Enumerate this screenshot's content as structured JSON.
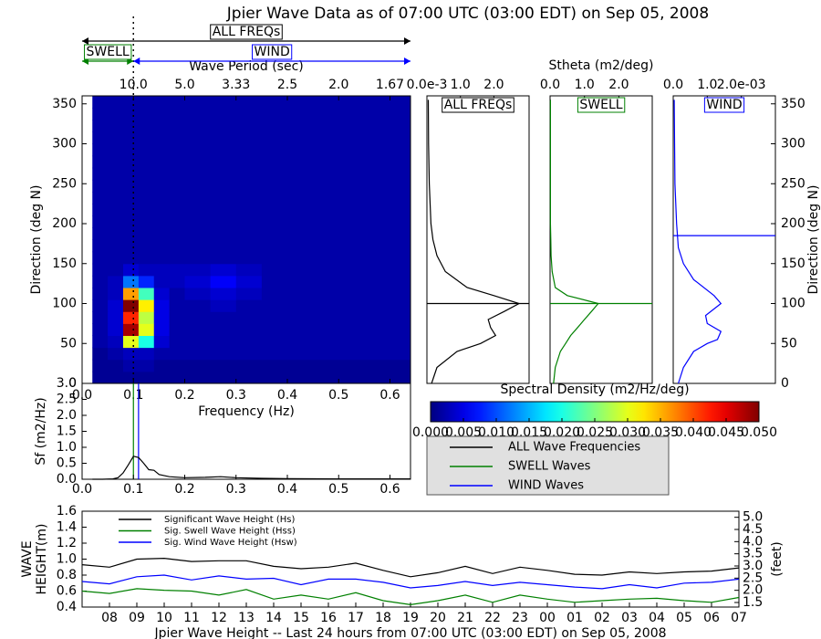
{
  "title": "Jpier Wave Data as of 07:00 UTC (03:00 EDT) on Sep 05, 2008",
  "legend": {
    "entries": [
      {
        "name": "ALL Wave Frequencies",
        "color": "#000000"
      },
      {
        "name": "SWELL Waves",
        "color": "#008000"
      },
      {
        "name": "WIND Waves",
        "color": "#0000ff"
      }
    ]
  },
  "chart_data": [
    {
      "type": "heatmap",
      "xlabel": "Frequency (Hz)",
      "ylabel": "Direction (deg N)",
      "x2label": "Wave Period (sec)",
      "xlim": [
        0,
        0.64
      ],
      "ylim": [
        0,
        360
      ],
      "xticks": [
        {
          "value": 0,
          "label": "0.0"
        },
        0.1,
        0.2,
        0.3,
        0.4,
        0.5,
        0.6
      ],
      "yticks": [
        0,
        50,
        100,
        150,
        200,
        250,
        300,
        350
      ],
      "x2ticks": [
        {
          "value": 0.1,
          "label": "10.0"
        },
        {
          "value": 0.2,
          "label": "5.0"
        },
        {
          "value": 0.3,
          "label": "3.33"
        },
        {
          "value": 0.4,
          "label": "2.5"
        },
        {
          "value": 0.5,
          "label": "2.0"
        },
        {
          "value": 0.6,
          "label": "1.67"
        }
      ],
      "x_edges": [
        0.02,
        0.05,
        0.08,
        0.11,
        0.14,
        0.17,
        0.2,
        0.25,
        0.3,
        0.35,
        0.4,
        0.5,
        0.64
      ],
      "y_edges": [
        0,
        15,
        30,
        45,
        60,
        75,
        90,
        105,
        120,
        135,
        150,
        165,
        180,
        195,
        210,
        225,
        240,
        255,
        270,
        285,
        300,
        315,
        330,
        345,
        360
      ],
      "values": [
        [
          0.001,
          0.001,
          0.001,
          0.001,
          0.001,
          0.001,
          0.001,
          0.001,
          0.001,
          0.001,
          0.001,
          0.001
        ],
        [
          0.001,
          0.001,
          0.002,
          0.002,
          0.001,
          0.001,
          0.001,
          0.001,
          0.001,
          0.001,
          0.001,
          0.001
        ],
        [
          0.001,
          0.002,
          0.003,
          0.003,
          0.002,
          0.002,
          0.002,
          0.002,
          0.002,
          0.002,
          0.002,
          0.002
        ],
        [
          0.002,
          0.003,
          0.03,
          0.02,
          0.004,
          0.002,
          0.002,
          0.002,
          0.002,
          0.002,
          0.002,
          0.002
        ],
        [
          0.002,
          0.004,
          0.048,
          0.03,
          0.005,
          0.002,
          0.002,
          0.002,
          0.002,
          0.002,
          0.002,
          0.002
        ],
        [
          0.002,
          0.004,
          0.042,
          0.028,
          0.005,
          0.002,
          0.002,
          0.002,
          0.002,
          0.002,
          0.002,
          0.002
        ],
        [
          0.002,
          0.004,
          0.05,
          0.032,
          0.005,
          0.002,
          0.002,
          0.003,
          0.002,
          0.002,
          0.002,
          0.002
        ],
        [
          0.002,
          0.003,
          0.036,
          0.022,
          0.004,
          0.002,
          0.003,
          0.004,
          0.003,
          0.002,
          0.002,
          0.002
        ],
        [
          0.002,
          0.003,
          0.012,
          0.008,
          0.003,
          0.003,
          0.004,
          0.006,
          0.004,
          0.002,
          0.002,
          0.002
        ],
        [
          0.002,
          0.002,
          0.004,
          0.003,
          0.003,
          0.003,
          0.003,
          0.004,
          0.003,
          0.002,
          0.002,
          0.002
        ],
        [
          0.002,
          0.002,
          0.002,
          0.002,
          0.002,
          0.002,
          0.002,
          0.002,
          0.002,
          0.002,
          0.002,
          0.002
        ],
        [
          0.002,
          0.002,
          0.002,
          0.002,
          0.002,
          0.002,
          0.002,
          0.002,
          0.002,
          0.002,
          0.002,
          0.002
        ],
        [
          0.002,
          0.002,
          0.002,
          0.002,
          0.002,
          0.002,
          0.002,
          0.002,
          0.002,
          0.002,
          0.002,
          0.002
        ],
        [
          0.002,
          0.002,
          0.002,
          0.002,
          0.002,
          0.002,
          0.002,
          0.002,
          0.002,
          0.002,
          0.002,
          0.002
        ],
        [
          0.002,
          0.002,
          0.002,
          0.002,
          0.002,
          0.002,
          0.002,
          0.002,
          0.002,
          0.002,
          0.002,
          0.002
        ],
        [
          0.002,
          0.002,
          0.002,
          0.002,
          0.002,
          0.002,
          0.002,
          0.002,
          0.002,
          0.002,
          0.002,
          0.002
        ],
        [
          0.002,
          0.002,
          0.002,
          0.002,
          0.002,
          0.002,
          0.002,
          0.002,
          0.002,
          0.002,
          0.002,
          0.002
        ],
        [
          0.002,
          0.002,
          0.002,
          0.002,
          0.002,
          0.002,
          0.002,
          0.002,
          0.002,
          0.002,
          0.002,
          0.002
        ],
        [
          0.002,
          0.002,
          0.002,
          0.002,
          0.002,
          0.002,
          0.002,
          0.002,
          0.002,
          0.002,
          0.002,
          0.002
        ],
        [
          0.002,
          0.002,
          0.002,
          0.002,
          0.002,
          0.002,
          0.002,
          0.002,
          0.002,
          0.002,
          0.002,
          0.002
        ],
        [
          0.002,
          0.002,
          0.002,
          0.002,
          0.002,
          0.002,
          0.002,
          0.002,
          0.002,
          0.002,
          0.002,
          0.002
        ],
        [
          0.002,
          0.002,
          0.002,
          0.002,
          0.002,
          0.002,
          0.002,
          0.002,
          0.002,
          0.002,
          0.002,
          0.002
        ],
        [
          0.002,
          0.002,
          0.002,
          0.002,
          0.002,
          0.002,
          0.002,
          0.002,
          0.002,
          0.002,
          0.002,
          0.002
        ],
        [
          0.002,
          0.002,
          0.002,
          0.002,
          0.002,
          0.002,
          0.002,
          0.002,
          0.002,
          0.002,
          0.002,
          0.002
        ]
      ],
      "split_x": 0.1,
      "annotations": {
        "all": "ALL FREQs",
        "swell": "SWELL",
        "wind": "WIND"
      },
      "colorbar": {
        "label": "Spectral Density (m2/Hz/deg)",
        "lim": [
          0,
          0.05
        ],
        "ticks": [
          {
            "value": 0,
            "label": "0.000"
          },
          {
            "value": 0.005,
            "label": "0.005"
          },
          {
            "value": 0.01,
            "label": "0.010"
          },
          {
            "value": 0.015,
            "label": "0.015"
          },
          {
            "value": 0.02,
            "label": "0.020"
          },
          {
            "value": 0.025,
            "label": "0.025"
          },
          {
            "value": 0.03,
            "label": "0.030"
          },
          {
            "value": 0.035,
            "label": "0.035"
          },
          {
            "value": 0.04,
            "label": "0.040"
          },
          {
            "value": 0.045,
            "label": "0.045"
          },
          {
            "value": 0.05,
            "label": "0.050"
          }
        ]
      }
    },
    {
      "type": "profile",
      "label": "ALL FREQs",
      "color": "#000000",
      "xlim": [
        0,
        3.05
      ],
      "ylim": [
        0,
        360
      ],
      "xticks": [
        {
          "value": 0,
          "label": "0.0e-3"
        },
        {
          "value": 1,
          "label": "1.0"
        },
        {
          "value": 2,
          "label": "2.0"
        }
      ],
      "y": [
        0,
        20,
        40,
        50,
        60,
        70,
        80,
        90,
        100,
        110,
        120,
        140,
        160,
        180,
        200,
        250,
        300,
        355
      ],
      "values": [
        0.14,
        0.3,
        0.9,
        1.6,
        2.05,
        1.9,
        1.83,
        2.3,
        2.75,
        2.0,
        1.2,
        0.55,
        0.3,
        0.18,
        0.12,
        0.07,
        0.05,
        0.04
      ],
      "hline": 100
    },
    {
      "type": "profile",
      "label": "SWELL",
      "color": "#008000",
      "xlabel": "Stheta (m2/deg)",
      "xlim": [
        0,
        2.97
      ],
      "ylim": [
        0,
        360
      ],
      "xticks": [
        {
          "value": 0,
          "label": "0.0"
        },
        {
          "value": 1,
          "label": "1.0"
        },
        {
          "value": 2,
          "label": "2.0"
        }
      ],
      "y": [
        0,
        20,
        40,
        50,
        60,
        70,
        80,
        90,
        100,
        110,
        120,
        140,
        160,
        180,
        200,
        250,
        300,
        355
      ],
      "values": [
        0.1,
        0.15,
        0.3,
        0.45,
        0.6,
        0.8,
        1.0,
        1.2,
        1.4,
        0.5,
        0.15,
        0.06,
        0.03,
        0.02,
        0.01,
        0.01,
        0.01,
        0.01
      ],
      "hline": 100
    },
    {
      "type": "profile",
      "label": "WIND",
      "color": "#0000ff",
      "ylabel": "Direction (deg N)",
      "xlim": [
        0,
        3.0
      ],
      "ylim": [
        0,
        360
      ],
      "xticks": [
        {
          "value": 0,
          "label": "0.0"
        },
        {
          "value": 1,
          "label": "1.0"
        },
        {
          "value": 2,
          "label": "2.0e-03"
        }
      ],
      "yticks": [
        0,
        50,
        100,
        150,
        200,
        250,
        300,
        350
      ],
      "y": [
        0,
        20,
        40,
        50,
        55,
        65,
        75,
        85,
        100,
        110,
        130,
        150,
        170,
        200,
        250,
        300,
        355
      ],
      "values": [
        0.15,
        0.3,
        0.6,
        1.0,
        1.3,
        1.4,
        1.0,
        0.95,
        1.4,
        1.2,
        0.6,
        0.3,
        0.15,
        0.1,
        0.05,
        0.04,
        0.03
      ],
      "hline": 185
    },
    {
      "type": "line",
      "ylabel": "Sf (m2/Hz)",
      "color": "#000000",
      "xlim": [
        0,
        0.64
      ],
      "ylim": [
        0,
        3.0
      ],
      "xticks": [
        {
          "value": 0,
          "label": "0.0"
        },
        0.1,
        0.2,
        0.3,
        0.4,
        0.5,
        0.6
      ],
      "yticks": [
        {
          "value": 0,
          "label": "0.0"
        },
        0.5,
        {
          "value": 1,
          "label": "1.0"
        },
        1.5,
        {
          "value": 2,
          "label": "2.0"
        },
        2.5,
        {
          "value": 3,
          "label": "3.0"
        }
      ],
      "x": [
        0.02,
        0.04,
        0.06,
        0.07,
        0.08,
        0.09,
        0.1,
        0.11,
        0.12,
        0.13,
        0.14,
        0.15,
        0.17,
        0.2,
        0.24,
        0.27,
        0.3,
        0.35,
        0.4,
        0.5,
        0.64
      ],
      "values": [
        0,
        0,
        0.01,
        0.05,
        0.2,
        0.45,
        0.72,
        0.68,
        0.5,
        0.3,
        0.28,
        0.15,
        0.08,
        0.05,
        0.06,
        0.08,
        0.05,
        0.03,
        0.02,
        0.01,
        0.01
      ],
      "vlines": [
        {
          "value": 0.1,
          "color": "#008000"
        },
        {
          "value": 0.11,
          "color": "#0000ff"
        }
      ]
    },
    {
      "type": "timeseries",
      "title": "Jpier Wave Height -- Last 24 hours from 07:00 UTC (03:00 EDT) on Sep 05, 2008",
      "ylabel_lines": [
        "WAVE",
        "HEIGHT(m)"
      ],
      "y2label": "(feet)",
      "categories": [
        null,
        "08",
        "09",
        "10",
        "11",
        "12",
        "13",
        "14",
        "15",
        "16",
        "17",
        "18",
        "19",
        "20",
        "21",
        "22",
        "23",
        "00",
        "01",
        "02",
        "03",
        "04",
        "05",
        "06",
        "07"
      ],
      "ylim": [
        0.4,
        1.6
      ],
      "yticks": [
        0.4,
        0.6,
        0.8,
        {
          "value": 1,
          "label": "1.0"
        },
        1.2,
        1.4,
        1.6
      ],
      "y2lim": [
        1.312,
        5.25
      ],
      "y2ticks": [
        1.5,
        {
          "value": 2,
          "label": "2.0"
        },
        2.5,
        {
          "value": 3,
          "label": "3.0"
        },
        3.5,
        {
          "value": 4,
          "label": "4.0"
        },
        4.5,
        {
          "value": 5,
          "label": "5.0"
        }
      ],
      "series": [
        {
          "name": "Significant Wave Height (Hs)",
          "color": "#000000",
          "values": [
            0.93,
            0.9,
            1.0,
            1.01,
            0.97,
            0.98,
            0.98,
            0.91,
            0.88,
            0.9,
            0.95,
            0.86,
            0.78,
            0.83,
            0.91,
            0.82,
            0.9,
            0.86,
            0.81,
            0.8,
            0.84,
            0.82,
            0.84,
            0.85,
            0.89
          ]
        },
        {
          "name": "Sig. Swell Wave Height (Hss)",
          "color": "#008000",
          "values": [
            0.6,
            0.57,
            0.63,
            0.61,
            0.6,
            0.55,
            0.62,
            0.5,
            0.55,
            0.5,
            0.58,
            0.48,
            0.43,
            0.48,
            0.55,
            0.46,
            0.55,
            0.5,
            0.46,
            0.48,
            0.5,
            0.51,
            0.48,
            0.46,
            0.52
          ]
        },
        {
          "name": "Sig. Wind Wave Height (Hsw)",
          "color": "#0000ff",
          "values": [
            0.72,
            0.69,
            0.78,
            0.8,
            0.74,
            0.79,
            0.75,
            0.76,
            0.68,
            0.75,
            0.75,
            0.71,
            0.64,
            0.67,
            0.72,
            0.67,
            0.71,
            0.68,
            0.65,
            0.63,
            0.68,
            0.64,
            0.7,
            0.71,
            0.75
          ]
        }
      ]
    }
  ]
}
